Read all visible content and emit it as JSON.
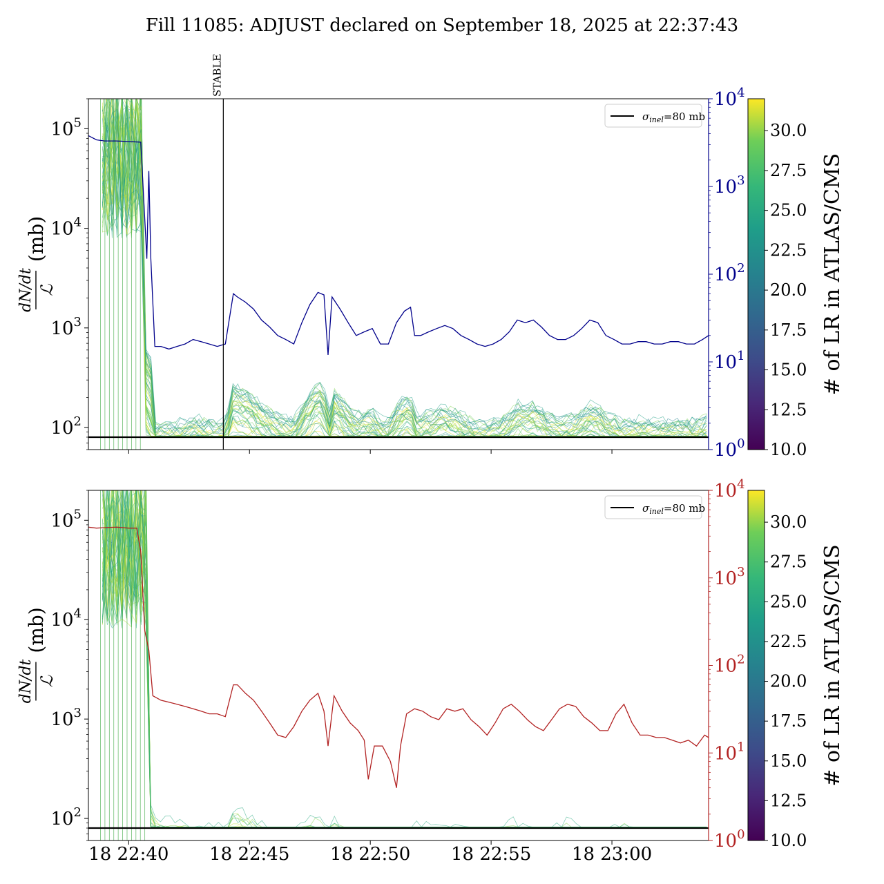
{
  "title": "Fill 11085: ADJUST declared on September 18, 2025 at 22:37:43",
  "chart_data": [
    {
      "type": "line",
      "panel": "top",
      "ylabel_fraction": "dN/dt / 𝓛",
      "ylabel_unit": "(mb)",
      "yscale": "log",
      "ylim_left": [
        60,
        200000
      ],
      "ylim_right": [
        1,
        10000
      ],
      "yticks_left": [
        {
          "v": 100,
          "base": "10",
          "exp": "2"
        },
        {
          "v": 1000,
          "base": "10",
          "exp": "3"
        },
        {
          "v": 10000,
          "base": "10",
          "exp": "4"
        },
        {
          "v": 100000,
          "base": "10",
          "exp": "5"
        }
      ],
      "yticks_right": [
        {
          "v": 1,
          "base": "10",
          "exp": "0"
        },
        {
          "v": 10,
          "base": "10",
          "exp": "1"
        },
        {
          "v": 100,
          "base": "10",
          "exp": "2"
        },
        {
          "v": 1000,
          "base": "10",
          "exp": "3"
        },
        {
          "v": 10000,
          "base": "10",
          "exp": "4"
        }
      ],
      "right_axis_color": "#00008b",
      "right_series_color": "#00008b",
      "xlim": [
        "2025-09-18 22:38:20",
        "2025-09-18 23:04:00"
      ],
      "xticks": [],
      "reference_line": {
        "label": "σinel=80 mb",
        "sigma": "σ",
        "sub": "inel",
        "rest": "=80 mb",
        "value": 80
      },
      "vline": {
        "label": "STABLE",
        "x": "2025-09-18 22:43:55"
      },
      "right_series": {
        "x": [
          "22:38:20",
          "22:38:40",
          "22:39:00",
          "22:39:30",
          "22:40:00",
          "22:40:30",
          "22:40:45",
          "22:40:50",
          "22:40:55",
          "22:41:05",
          "22:41:20",
          "22:41:40",
          "22:42:00",
          "22:42:20",
          "22:42:40",
          "22:43:00",
          "22:43:20",
          "22:43:40",
          "22:44:00",
          "22:44:20",
          "22:44:30",
          "22:44:50",
          "22:45:10",
          "22:45:30",
          "22:45:50",
          "22:46:10",
          "22:46:30",
          "22:46:50",
          "22:47:10",
          "22:47:30",
          "22:47:50",
          "22:48:05",
          "22:48:15",
          "22:48:25",
          "22:48:45",
          "22:49:05",
          "22:49:25",
          "22:49:45",
          "22:50:05",
          "22:50:25",
          "22:50:45",
          "22:51:05",
          "22:51:25",
          "22:51:40",
          "22:51:50",
          "22:52:05",
          "22:52:25",
          "22:52:45",
          "22:53:05",
          "22:53:25",
          "22:53:45",
          "22:54:05",
          "22:54:25",
          "22:54:45",
          "22:55:05",
          "22:55:25",
          "22:55:45",
          "22:56:05",
          "22:56:25",
          "22:56:45",
          "22:57:05",
          "22:57:25",
          "22:57:45",
          "22:58:05",
          "22:58:25",
          "22:58:45",
          "22:59:05",
          "22:59:25",
          "22:59:45",
          "23:00:05",
          "23:00:25",
          "23:00:45",
          "23:01:05",
          "23:01:25",
          "23:01:45",
          "23:02:05",
          "23:02:25",
          "23:02:45",
          "23:03:05",
          "23:03:25",
          "23:03:45",
          "23:04:00"
        ],
        "y": [
          3800,
          3400,
          3300,
          3300,
          3250,
          3200,
          150,
          1500,
          150,
          15,
          15,
          14,
          15,
          16,
          18,
          17,
          16,
          15,
          16,
          60,
          55,
          48,
          40,
          30,
          25,
          20,
          18,
          16,
          28,
          45,
          62,
          58,
          12,
          55,
          40,
          28,
          20,
          22,
          24,
          16,
          16,
          28,
          38,
          42,
          20,
          20,
          22,
          24,
          26,
          24,
          20,
          18,
          16,
          15,
          16,
          18,
          22,
          30,
          28,
          30,
          25,
          20,
          18,
          18,
          20,
          24,
          30,
          28,
          20,
          18,
          16,
          16,
          17,
          17,
          16,
          16,
          17,
          17,
          16,
          16,
          18,
          20
        ]
      }
    },
    {
      "type": "line",
      "panel": "bottom",
      "ylabel_fraction": "dN/dt / 𝓛",
      "ylabel_unit": "(mb)",
      "yscale": "log",
      "ylim_left": [
        60,
        200000
      ],
      "ylim_right": [
        1,
        10000
      ],
      "yticks_left": [
        {
          "v": 100,
          "base": "10",
          "exp": "2"
        },
        {
          "v": 1000,
          "base": "10",
          "exp": "3"
        },
        {
          "v": 10000,
          "base": "10",
          "exp": "4"
        },
        {
          "v": 100000,
          "base": "10",
          "exp": "5"
        }
      ],
      "yticks_right": [
        {
          "v": 1,
          "base": "10",
          "exp": "0"
        },
        {
          "v": 10,
          "base": "10",
          "exp": "1"
        },
        {
          "v": 100,
          "base": "10",
          "exp": "2"
        },
        {
          "v": 1000,
          "base": "10",
          "exp": "3"
        },
        {
          "v": 10000,
          "base": "10",
          "exp": "4"
        }
      ],
      "right_axis_color": "#b22222",
      "right_series_color": "#b22222",
      "xlim": [
        "2025-09-18 22:38:20",
        "2025-09-18 23:04:00"
      ],
      "xticks": [
        {
          "x": "2025-09-18 22:40:00",
          "label": "18 22:40"
        },
        {
          "x": "2025-09-18 22:45:00",
          "label": "18 22:45"
        },
        {
          "x": "2025-09-18 22:50:00",
          "label": "18 22:50"
        },
        {
          "x": "2025-09-18 22:55:00",
          "label": "18 22:55"
        },
        {
          "x": "2025-09-18 23:00:00",
          "label": "18 23:00"
        }
      ],
      "reference_line": {
        "label": "σinel=80 mb",
        "sigma": "σ",
        "sub": "inel",
        "rest": "=80 mb",
        "value": 80
      },
      "right_series": {
        "x": [
          "22:38:20",
          "22:38:40",
          "22:39:00",
          "22:39:30",
          "22:40:00",
          "22:40:20",
          "22:40:30",
          "22:40:40",
          "22:40:50",
          "22:41:00",
          "22:41:20",
          "22:41:40",
          "22:42:00",
          "22:42:20",
          "22:42:40",
          "22:43:00",
          "22:43:20",
          "22:43:40",
          "22:44:00",
          "22:44:20",
          "22:44:30",
          "22:44:50",
          "22:45:10",
          "22:45:30",
          "22:45:50",
          "22:46:10",
          "22:46:30",
          "22:46:50",
          "22:47:10",
          "22:47:30",
          "22:47:50",
          "22:48:05",
          "22:48:15",
          "22:48:30",
          "22:48:50",
          "22:49:10",
          "22:49:30",
          "22:49:45",
          "22:49:55",
          "22:50:10",
          "22:50:30",
          "22:50:50",
          "22:51:05",
          "22:51:15",
          "22:51:30",
          "22:51:50",
          "22:52:10",
          "22:52:30",
          "22:52:50",
          "22:53:10",
          "22:53:30",
          "22:53:50",
          "22:54:10",
          "22:54:30",
          "22:54:50",
          "22:55:10",
          "22:55:30",
          "22:55:50",
          "22:56:10",
          "22:56:30",
          "22:56:50",
          "22:57:10",
          "22:57:30",
          "22:57:50",
          "22:58:10",
          "22:58:30",
          "22:58:50",
          "22:59:10",
          "22:59:30",
          "22:59:50",
          "23:00:10",
          "23:00:30",
          "23:00:50",
          "23:01:10",
          "23:01:30",
          "23:01:50",
          "23:02:10",
          "23:02:30",
          "23:02:50",
          "23:03:10",
          "23:03:30",
          "23:03:50",
          "23:04:00"
        ],
        "y": [
          3800,
          3700,
          3750,
          3800,
          3700,
          3700,
          2000,
          250,
          150,
          45,
          40,
          38,
          36,
          34,
          32,
          30,
          28,
          28,
          26,
          60,
          60,
          48,
          40,
          30,
          22,
          16,
          15,
          20,
          30,
          40,
          48,
          30,
          12,
          45,
          30,
          22,
          18,
          14,
          5,
          12,
          12,
          8,
          4,
          12,
          28,
          32,
          30,
          26,
          24,
          32,
          30,
          32,
          24,
          20,
          16,
          22,
          32,
          36,
          30,
          24,
          20,
          18,
          24,
          32,
          36,
          34,
          26,
          22,
          18,
          18,
          28,
          36,
          22,
          16,
          16,
          15,
          15,
          14,
          13,
          14,
          12,
          16,
          15
        ]
      }
    }
  ],
  "colorbar": {
    "label": "# of LR in ATLAS/CMS",
    "range": [
      10,
      32
    ],
    "ticks": [
      "10.0",
      "12.5",
      "15.0",
      "17.5",
      "20.0",
      "22.5",
      "25.0",
      "27.5",
      "30.0"
    ],
    "colormap": "viridis"
  }
}
